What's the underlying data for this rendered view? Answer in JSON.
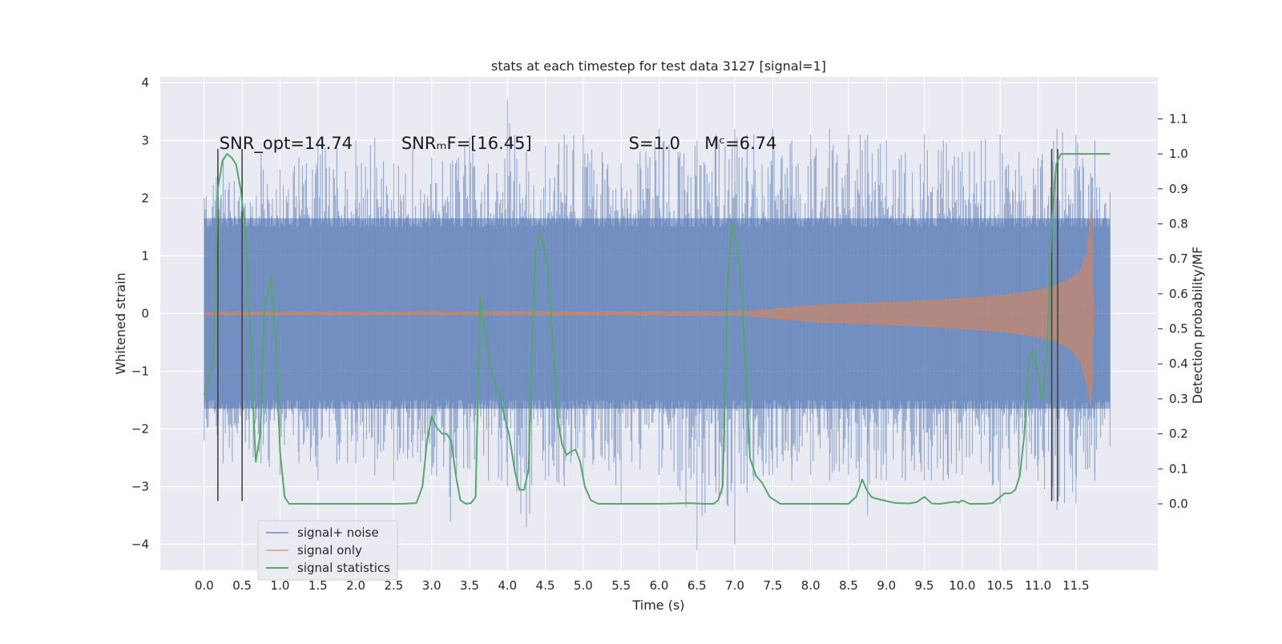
{
  "chart_data": {
    "type": "line",
    "title": "stats at each timestep for test data 3127 [signal=1]",
    "xlabel": "Time (s)",
    "ylabel": "Whitened strain",
    "y2label": "Detection probability/MF",
    "xlim": [
      -0.58,
      12.58
    ],
    "ylim": [
      -4.45,
      4.1
    ],
    "y2lim": [
      -0.19,
      1.22
    ],
    "grid": true,
    "legend_position": "lower-left",
    "xticks": [
      0.0,
      0.5,
      1.0,
      1.5,
      2.0,
      2.5,
      3.0,
      3.5,
      4.0,
      4.5,
      5.0,
      5.5,
      6.0,
      6.5,
      7.0,
      7.5,
      8.0,
      8.5,
      9.0,
      9.5,
      10.0,
      10.5,
      11.0,
      11.5
    ],
    "xtick_labels": [
      "0.0",
      "0.5",
      "1.0",
      "1.5",
      "2.0",
      "2.5",
      "3.0",
      "3.5",
      "4.0",
      "4.5",
      "5.0",
      "5.5",
      "6.0",
      "6.5",
      "7.0",
      "7.5",
      "8.0",
      "8.5",
      "9.0",
      "9.5",
      "10.0",
      "10.5",
      "11.0",
      "11.5"
    ],
    "yticks": [
      -4,
      -3,
      -2,
      -1,
      0,
      1,
      2,
      3,
      4
    ],
    "ytick_labels": [
      "−4",
      "−3",
      "−2",
      "−1",
      "0",
      "1",
      "2",
      "3",
      "4"
    ],
    "y2ticks": [
      0.0,
      0.1,
      0.2,
      0.3,
      0.4,
      0.5,
      0.6,
      0.7,
      0.8,
      0.9,
      1.0,
      1.1
    ],
    "y2tick_labels": [
      "0.0",
      "0.1",
      "0.2",
      "0.3",
      "0.4",
      "0.5",
      "0.6",
      "0.7",
      "0.8",
      "0.9",
      "1.0",
      "1.1"
    ],
    "colors": {
      "plot_background": "#eaeaf2",
      "grid": "#ffffff",
      "signal_noise": "#4c72b0",
      "signal_only": "#dd8452",
      "statistics": "#55a868",
      "markers": "#444444"
    },
    "annotations": [
      {
        "text": "SNR_opt=14.74",
        "x": 0.2,
        "y": 2.85
      },
      {
        "text": "SNRₘF=[16.45]",
        "x": 2.6,
        "y": 2.85
      },
      {
        "text": "S=1.0",
        "x": 5.6,
        "y": 2.85
      },
      {
        "text": "Mᶜ=6.74",
        "x": 6.6,
        "y": 2.85
      }
    ],
    "vertical_markers": [
      {
        "x": 0.18,
        "y_top": 2.85,
        "y_bottom": -3.25
      },
      {
        "x": 0.5,
        "y_top": 2.85,
        "y_bottom": -3.25
      },
      {
        "x": 11.18,
        "y_top": 2.85,
        "y_bottom": -3.25
      },
      {
        "x": 11.26,
        "y_top": 2.85,
        "y_bottom": -3.25
      }
    ],
    "series": [
      {
        "name": "signal+ noise",
        "axis": "left",
        "x_range": [
          0.0,
          11.95
        ],
        "envelope_upper": [
          [
            0.0,
            2.0
          ],
          [
            0.25,
            2.7
          ],
          [
            0.5,
            2.6
          ],
          [
            0.75,
            2.8
          ],
          [
            1.0,
            2.5
          ],
          [
            1.25,
            2.7
          ],
          [
            1.5,
            3.0
          ],
          [
            1.75,
            2.9
          ],
          [
            2.0,
            3.0
          ],
          [
            2.25,
            3.05
          ],
          [
            2.5,
            2.6
          ],
          [
            2.75,
            2.9
          ],
          [
            3.0,
            2.7
          ],
          [
            3.25,
            2.6
          ],
          [
            3.5,
            3.05
          ],
          [
            3.75,
            2.6
          ],
          [
            4.0,
            3.7
          ],
          [
            4.25,
            2.8
          ],
          [
            4.5,
            2.9
          ],
          [
            4.75,
            3.1
          ],
          [
            5.0,
            3.1
          ],
          [
            5.25,
            2.8
          ],
          [
            5.5,
            2.6
          ],
          [
            5.75,
            2.8
          ],
          [
            6.0,
            3.2
          ],
          [
            6.25,
            2.8
          ],
          [
            6.5,
            3.0
          ],
          [
            6.75,
            3.1
          ],
          [
            7.0,
            3.2
          ],
          [
            7.25,
            3.1
          ],
          [
            7.5,
            3.2
          ],
          [
            7.75,
            3.0
          ],
          [
            8.0,
            3.1
          ],
          [
            8.25,
            3.2
          ],
          [
            8.5,
            3.1
          ],
          [
            8.75,
            3.1
          ],
          [
            9.0,
            3.0
          ],
          [
            9.25,
            2.8
          ],
          [
            9.5,
            3.1
          ],
          [
            9.75,
            3.0
          ],
          [
            10.0,
            2.8
          ],
          [
            10.25,
            3.0
          ],
          [
            10.5,
            3.1
          ],
          [
            10.75,
            2.8
          ],
          [
            11.0,
            2.7
          ],
          [
            11.25,
            3.2
          ],
          [
            11.5,
            3.1
          ],
          [
            11.75,
            3.0
          ],
          [
            11.95,
            2.1
          ]
        ],
        "envelope_lower": [
          [
            0.0,
            -2.2
          ],
          [
            0.25,
            -2.6
          ],
          [
            0.5,
            -2.7
          ],
          [
            0.75,
            -2.6
          ],
          [
            1.0,
            -2.8
          ],
          [
            1.25,
            -2.6
          ],
          [
            1.5,
            -2.9
          ],
          [
            1.75,
            -2.6
          ],
          [
            2.0,
            -2.6
          ],
          [
            2.25,
            -2.8
          ],
          [
            2.5,
            -2.9
          ],
          [
            2.75,
            -2.5
          ],
          [
            3.0,
            -2.8
          ],
          [
            3.25,
            -3.6
          ],
          [
            3.5,
            -2.7
          ],
          [
            3.75,
            -2.9
          ],
          [
            4.0,
            -3.0
          ],
          [
            4.25,
            -3.7
          ],
          [
            4.5,
            -2.9
          ],
          [
            4.75,
            -3.0
          ],
          [
            5.0,
            -2.8
          ],
          [
            5.25,
            -2.5
          ],
          [
            5.5,
            -3.3
          ],
          [
            5.75,
            -2.7
          ],
          [
            6.0,
            -2.8
          ],
          [
            6.25,
            -3.0
          ],
          [
            6.5,
            -4.1
          ],
          [
            6.75,
            -3.1
          ],
          [
            7.0,
            -4.0
          ],
          [
            7.25,
            -2.9
          ],
          [
            7.5,
            -2.8
          ],
          [
            7.75,
            -2.9
          ],
          [
            8.0,
            -2.8
          ],
          [
            8.25,
            -2.9
          ],
          [
            8.5,
            -2.8
          ],
          [
            8.75,
            -3.5
          ],
          [
            9.0,
            -2.9
          ],
          [
            9.25,
            -2.9
          ],
          [
            9.5,
            -2.9
          ],
          [
            9.75,
            -2.9
          ],
          [
            10.0,
            -2.8
          ],
          [
            10.25,
            -2.6
          ],
          [
            10.5,
            -3.3
          ],
          [
            10.75,
            -2.9
          ],
          [
            11.0,
            -2.9
          ],
          [
            11.25,
            -3.4
          ],
          [
            11.5,
            -3.3
          ],
          [
            11.75,
            -2.9
          ],
          [
            11.95,
            -2.3
          ]
        ],
        "core_range": [
          -1.65,
          1.65
        ]
      },
      {
        "name": "signal only",
        "axis": "left",
        "x": [
          0.0,
          7.0,
          7.3,
          7.7,
          8.0,
          8.5,
          9.0,
          9.5,
          10.0,
          10.5,
          10.8,
          11.0,
          11.2,
          11.4,
          11.55,
          11.65,
          11.7,
          11.73,
          11.95
        ],
        "upper": [
          0.02,
          0.03,
          0.05,
          0.1,
          0.14,
          0.17,
          0.19,
          0.22,
          0.26,
          0.31,
          0.36,
          0.4,
          0.47,
          0.58,
          0.72,
          1.05,
          1.8,
          0.0,
          0.0
        ],
        "lower": [
          -0.02,
          -0.03,
          -0.05,
          -0.1,
          -0.14,
          -0.17,
          -0.19,
          -0.22,
          -0.26,
          -0.31,
          -0.36,
          -0.4,
          -0.47,
          -0.58,
          -0.8,
          -1.25,
          -1.6,
          0.0,
          0.0
        ]
      },
      {
        "name": "signal statistics",
        "axis": "right",
        "x": [
          0.0,
          0.06,
          0.12,
          0.18,
          0.24,
          0.3,
          0.36,
          0.42,
          0.48,
          0.56,
          0.62,
          0.68,
          0.74,
          0.8,
          0.88,
          0.94,
          1.0,
          1.06,
          1.12,
          1.2,
          1.4,
          1.8,
          2.2,
          2.6,
          2.8,
          2.88,
          2.94,
          3.0,
          3.06,
          3.14,
          3.2,
          3.26,
          3.32,
          3.38,
          3.45,
          3.52,
          3.58,
          3.64,
          3.7,
          3.76,
          3.84,
          3.9,
          3.96,
          4.02,
          4.1,
          4.16,
          4.22,
          4.28,
          4.36,
          4.42,
          4.48,
          4.54,
          4.6,
          4.66,
          4.72,
          4.78,
          4.84,
          4.9,
          4.96,
          5.02,
          5.1,
          5.2,
          5.6,
          6.0,
          6.4,
          6.6,
          6.72,
          6.78,
          6.84,
          6.9,
          6.96,
          7.02,
          7.08,
          7.14,
          7.2,
          7.28,
          7.36,
          7.46,
          7.6,
          8.0,
          8.5,
          8.6,
          8.68,
          8.74,
          8.8,
          8.86,
          8.96,
          9.1,
          9.3,
          9.4,
          9.5,
          9.6,
          9.7,
          9.8,
          9.9,
          9.96,
          10.0,
          10.1,
          10.3,
          10.4,
          10.5,
          10.56,
          10.64,
          10.7,
          10.76,
          10.82,
          10.88,
          10.94,
          11.0,
          11.06,
          11.12,
          11.18,
          11.24,
          11.3,
          11.36,
          11.42,
          11.5,
          11.6,
          11.7,
          11.8,
          11.9,
          11.95
        ],
        "y": [
          0.31,
          0.36,
          0.4,
          0.9,
          0.98,
          1.0,
          0.99,
          0.97,
          0.9,
          0.75,
          0.4,
          0.12,
          0.2,
          0.57,
          0.65,
          0.48,
          0.15,
          0.02,
          0.0,
          0.0,
          0.0,
          0.0,
          0.0,
          0.0,
          0.002,
          0.05,
          0.18,
          0.25,
          0.22,
          0.2,
          0.2,
          0.18,
          0.08,
          0.01,
          0.0,
          0.002,
          0.02,
          0.59,
          0.5,
          0.4,
          0.34,
          0.31,
          0.25,
          0.2,
          0.09,
          0.04,
          0.04,
          0.1,
          0.7,
          0.77,
          0.74,
          0.65,
          0.45,
          0.25,
          0.17,
          0.14,
          0.15,
          0.155,
          0.12,
          0.05,
          0.01,
          0.0,
          0.0,
          0.0,
          0.002,
          0.0,
          0.0,
          0.01,
          0.05,
          0.6,
          0.8,
          0.75,
          0.65,
          0.4,
          0.13,
          0.08,
          0.06,
          0.02,
          0.0,
          0.0,
          0.0,
          0.02,
          0.07,
          0.04,
          0.02,
          0.015,
          0.01,
          0.003,
          0.001,
          0.005,
          0.02,
          0.001,
          0.0,
          0.003,
          0.006,
          0.004,
          0.01,
          0.0,
          0.0,
          0.002,
          0.02,
          0.03,
          0.03,
          0.04,
          0.08,
          0.2,
          0.42,
          0.44,
          0.37,
          0.3,
          0.44,
          0.8,
          0.97,
          1.0,
          1.0,
          1.0,
          1.0,
          1.0,
          1.0,
          1.0,
          1.0,
          1.0
        ]
      }
    ]
  }
}
